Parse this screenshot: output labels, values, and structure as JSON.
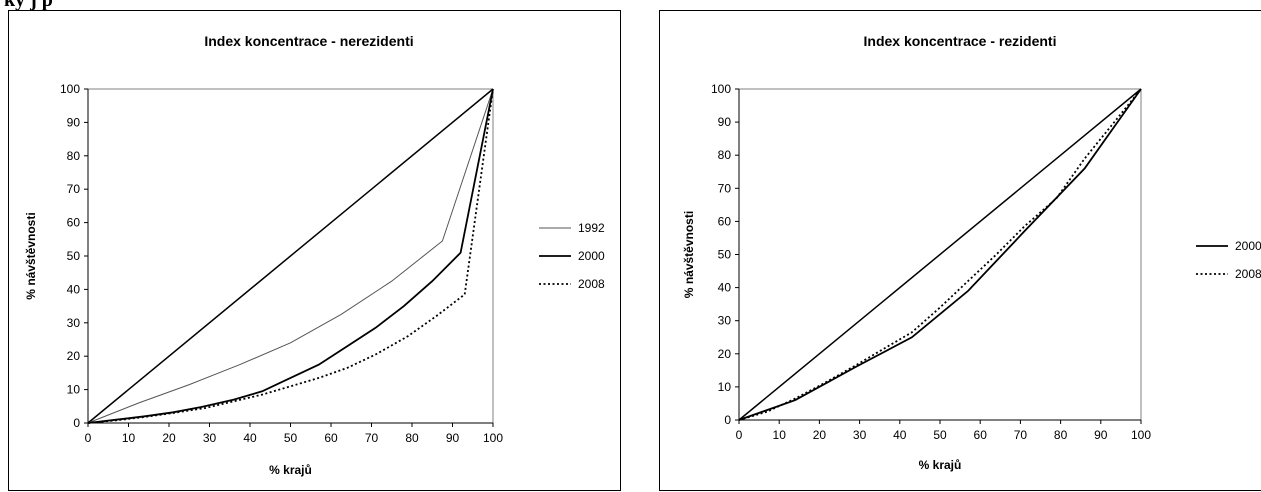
{
  "page": {
    "header": "ky j p"
  },
  "chart_data": [
    {
      "type": "line",
      "title": "Index koncentrace - nerezidenti",
      "xlabel": "% krajů",
      "ylabel": "% návštěvnosti",
      "xlim": [
        0,
        100
      ],
      "ylim": [
        0,
        100
      ],
      "x_ticks": [
        0,
        10,
        20,
        30,
        40,
        50,
        60,
        70,
        80,
        90,
        100
      ],
      "y_ticks": [
        0,
        10,
        20,
        30,
        40,
        50,
        60,
        70,
        80,
        90,
        100
      ],
      "grid": false,
      "legend_position": "right",
      "equality_line": [
        [
          0,
          0
        ],
        [
          100,
          100
        ]
      ],
      "series": [
        {
          "name": "1992",
          "style": "thin",
          "points": [
            [
              0,
              0
            ],
            [
              12.5,
              6
            ],
            [
              25,
              11.5
            ],
            [
              37.5,
              17.5
            ],
            [
              50,
              24
            ],
            [
              62.5,
              32.5
            ],
            [
              75,
              42.5
            ],
            [
              87.5,
              54.5
            ],
            [
              100,
              100
            ]
          ]
        },
        {
          "name": "2000",
          "style": "thick",
          "points": [
            [
              0,
              0
            ],
            [
              7,
              1
            ],
            [
              14,
              2
            ],
            [
              21,
              3.2
            ],
            [
              28,
              4.8
            ],
            [
              36,
              7
            ],
            [
              43,
              9.5
            ],
            [
              50,
              13.5
            ],
            [
              57,
              17.5
            ],
            [
              64,
              23
            ],
            [
              71,
              28.5
            ],
            [
              78,
              35
            ],
            [
              85,
              42.5
            ],
            [
              92,
              51
            ],
            [
              100,
              100
            ]
          ]
        },
        {
          "name": "2008",
          "style": "dotted",
          "points": [
            [
              0,
              0
            ],
            [
              7,
              0.8
            ],
            [
              14,
              1.8
            ],
            [
              21,
              3
            ],
            [
              29,
              4.5
            ],
            [
              36,
              6.5
            ],
            [
              43,
              8.5
            ],
            [
              50,
              11
            ],
            [
              57,
              13.5
            ],
            [
              64,
              16.5
            ],
            [
              71,
              20.5
            ],
            [
              79,
              26
            ],
            [
              86,
              32
            ],
            [
              93,
              38.5
            ],
            [
              100,
              100
            ]
          ]
        }
      ]
    },
    {
      "type": "line",
      "title": "Index koncentrace - rezidenti",
      "xlabel": "% krajů",
      "ylabel": "% návštěvnosti",
      "xlim": [
        0,
        100
      ],
      "ylim": [
        0,
        100
      ],
      "x_ticks": [
        0,
        10,
        20,
        30,
        40,
        50,
        60,
        70,
        80,
        90,
        100
      ],
      "y_ticks": [
        0,
        10,
        20,
        30,
        40,
        50,
        60,
        70,
        80,
        90,
        100
      ],
      "grid": false,
      "legend_position": "right",
      "equality_line": [
        [
          0,
          0
        ],
        [
          100,
          100
        ]
      ],
      "series": [
        {
          "name": "2000",
          "style": "thick",
          "points": [
            [
              0,
              0
            ],
            [
              14,
              6
            ],
            [
              29,
              16
            ],
            [
              43,
              25
            ],
            [
              57,
              39
            ],
            [
              71,
              57
            ],
            [
              86,
              76
            ],
            [
              100,
              100
            ]
          ]
        },
        {
          "name": "2008",
          "style": "dotted",
          "points": [
            [
              0,
              0
            ],
            [
              7,
              2.5
            ],
            [
              14,
              6.5
            ],
            [
              21,
              11
            ],
            [
              29,
              16.5
            ],
            [
              36,
              21.5
            ],
            [
              43,
              26.5
            ],
            [
              50,
              34
            ],
            [
              57,
              42
            ],
            [
              64,
              50
            ],
            [
              71,
              58.5
            ],
            [
              79,
              67
            ],
            [
              86,
              79
            ],
            [
              93,
              89.5
            ],
            [
              100,
              100
            ]
          ]
        }
      ]
    }
  ]
}
